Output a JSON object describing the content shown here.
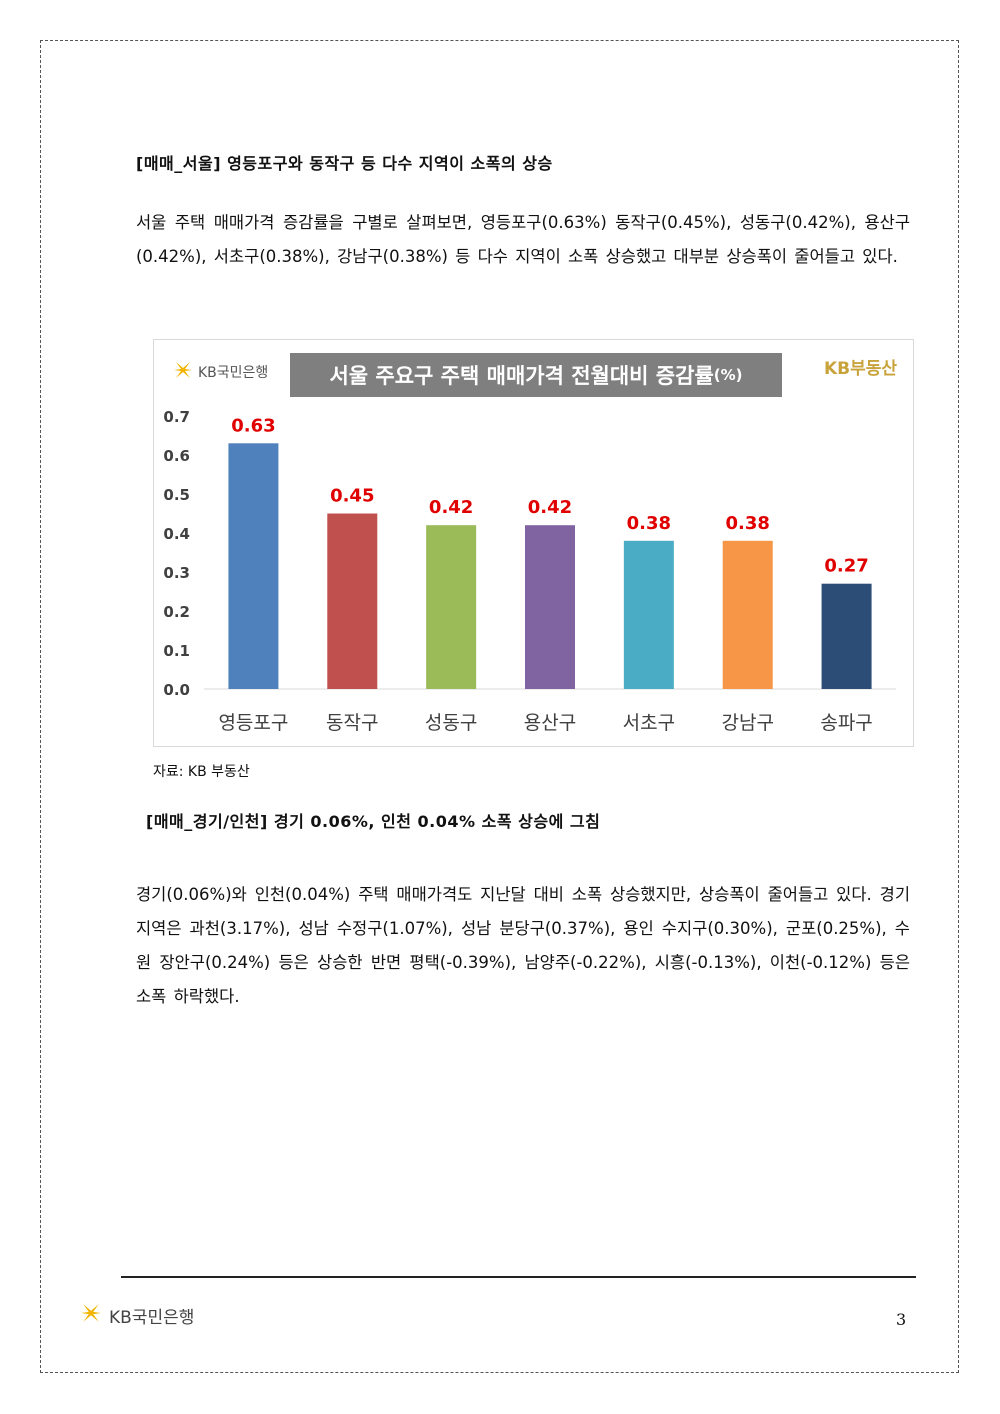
{
  "section1": {
    "heading": "[매매_서울] 영등포구와 동작구 등 다수 지역이 소폭의 상승",
    "paragraph": "서울 주택 매매가격 증감률을 구별로 살펴보면, 영등포구(0.63%) 동작구(0.45%), 성동구(0.42%), 용산구(0.42%), 서초구(0.38%), 강남구(0.38%) 등 다수 지역이 소폭 상승했고 대부분 상승폭이 줄어들고 있다."
  },
  "chart_header": {
    "logo_text": "KB국민은행",
    "title_main": "서울 주요구 주택 매매가격 전월대비 증감률",
    "title_unit": "(%)",
    "brand_right": "KB부동산"
  },
  "chart_data": {
    "type": "bar",
    "title": "서울 주요구 주택 매매가격 전월대비 증감률(%)",
    "categories": [
      "영등포구",
      "동작구",
      "성동구",
      "용산구",
      "서초구",
      "강남구",
      "송파구"
    ],
    "values": [
      0.63,
      0.45,
      0.42,
      0.42,
      0.38,
      0.38,
      0.27
    ],
    "value_labels": [
      "0.63",
      "0.45",
      "0.42",
      "0.42",
      "0.38",
      "0.38",
      "0.27"
    ],
    "bar_colors": [
      "#4f81bd",
      "#c0504d",
      "#9bbb59",
      "#8064a2",
      "#4bacc6",
      "#f79646",
      "#2c4d75"
    ],
    "label_color": "#e00000",
    "ylim": [
      0,
      0.7
    ],
    "yticks": [
      "0.0",
      "0.1",
      "0.2",
      "0.3",
      "0.4",
      "0.5",
      "0.6",
      "0.7"
    ],
    "grid": false,
    "legend": "none"
  },
  "source_note": "자료: KB 부동산",
  "section2": {
    "heading": "[매매_경기/인천] 경기 0.06%, 인천 0.04% 소폭 상승에 그침",
    "paragraph": "경기(0.06%)와 인천(0.04%) 주택 매매가격도 지난달 대비 소폭 상승했지만, 상승폭이 줄어들고 있다. 경기지역은 과천(3.17%), 성남 수정구(1.07%), 성남 분당구(0.37%), 용인 수지구(0.30%), 군포(0.25%), 수원 장안구(0.24%) 등은 상승한 반면 평택(-0.39%), 남양주(-0.22%), 시흥(-0.13%), 이천(-0.12%) 등은 소폭 하락했다."
  },
  "footer": {
    "logo_text": "KB국민은행",
    "page_number": "3"
  }
}
